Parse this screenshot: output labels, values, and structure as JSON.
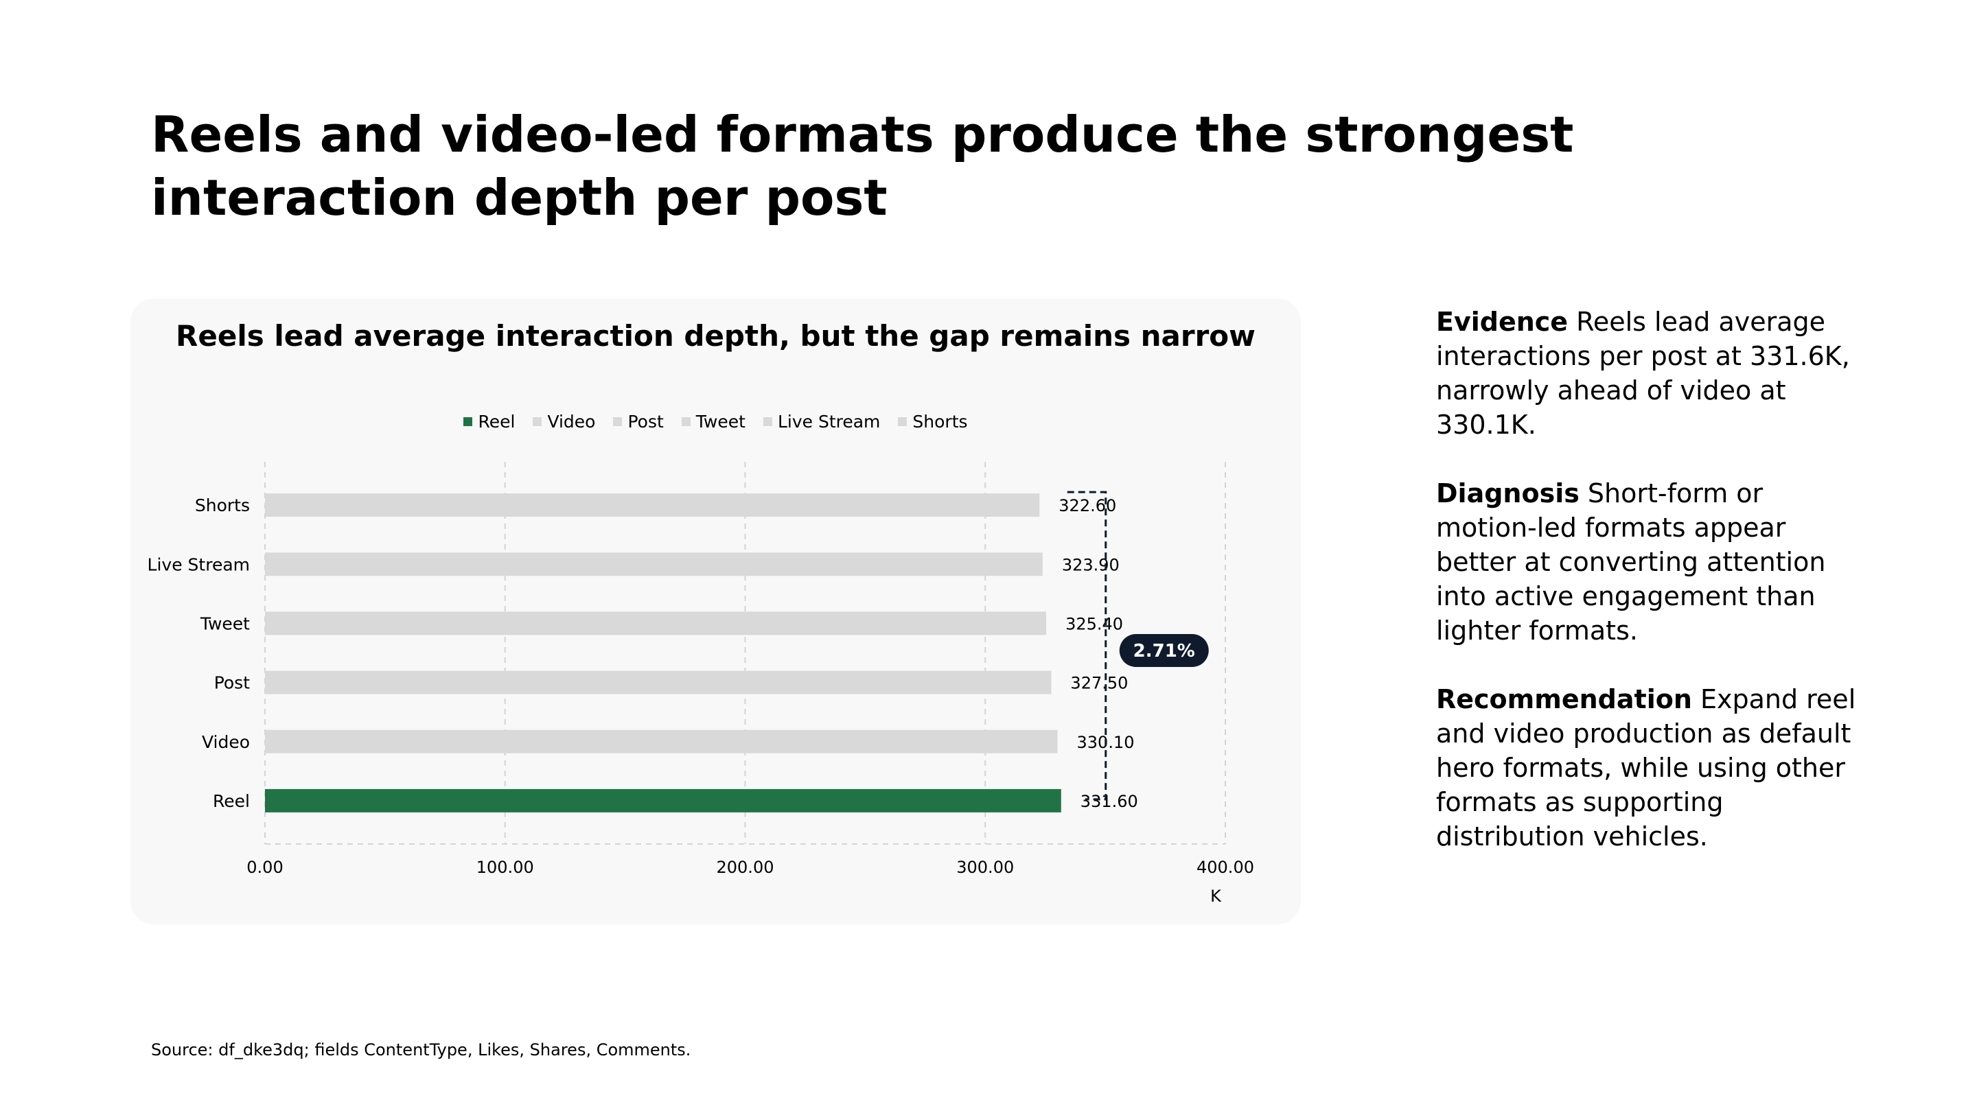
{
  "headline": "Reels and video-led formats produce the strongest interaction depth per post",
  "chart_data": {
    "type": "bar",
    "orientation": "horizontal",
    "title": "Reels lead average interaction depth, but the gap remains narrow",
    "categories": [
      "Shorts",
      "Live Stream",
      "Tweet",
      "Post",
      "Video",
      "Reel"
    ],
    "values": [
      322.6,
      323.9,
      325.4,
      327.5,
      330.1,
      331.6
    ],
    "value_labels": [
      "322.60",
      "323.90",
      "325.40",
      "327.50",
      "330.10",
      "331.60"
    ],
    "legend": [
      "Reel",
      "Video",
      "Post",
      "Tweet",
      "Live Stream",
      "Shorts"
    ],
    "legend_placement": "top-center",
    "highlight": "Reel",
    "highlight_color": "#217346",
    "base_color": "#d9d9d9",
    "xlim": [
      0,
      400
    ],
    "x_ticks": [
      "0.00",
      "100.00",
      "200.00",
      "300.00",
      "400.00"
    ],
    "x_unit": "K",
    "grid": true,
    "annotation": {
      "text": "2.71%",
      "from": "Shorts",
      "to": "Reel",
      "color": "#0f1b2d"
    }
  },
  "sidebar": {
    "evidence_label": "Evidence",
    "evidence_text": " Reels lead average interactions per post at 331.6K, narrowly ahead of video at 330.1K.",
    "diagnosis_label": "Diagnosis",
    "diagnosis_text": " Short-form or motion-led formats appear better at converting attention into active engagement than lighter formats.",
    "recommendation_label": "Recommendation",
    "recommendation_text": " Expand reel and video production as default hero formats, while using other formats as supporting distribution vehicles."
  },
  "source": "Source: df_dke3dq; fields ContentType, Likes, Shares, Comments."
}
